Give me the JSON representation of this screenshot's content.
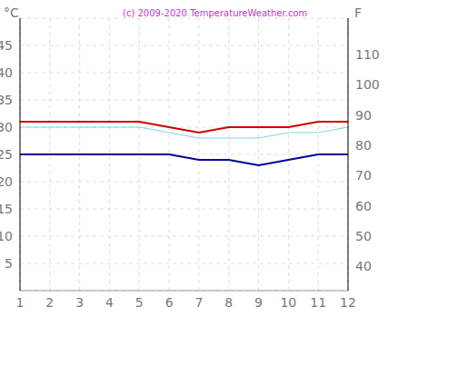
{
  "chart_data": {
    "type": "line",
    "title": "(c) 2009-2020 TemperatureWeather.com",
    "y_label": "°C",
    "y2_label": "F",
    "x": [
      1,
      2,
      3,
      4,
      5,
      6,
      7,
      8,
      9,
      10,
      11,
      12
    ],
    "xlim": [
      1,
      12
    ],
    "xticks": [
      1,
      2,
      3,
      4,
      5,
      6,
      7,
      8,
      9,
      10,
      11,
      12
    ],
    "ylim": [
      0,
      50
    ],
    "yticks": [
      5,
      10,
      15,
      20,
      25,
      30,
      35,
      40,
      45
    ],
    "y2lim": [
      32,
      122
    ],
    "y2ticks": [
      40,
      50,
      60,
      70,
      80,
      90,
      100,
      110
    ],
    "grid": true,
    "series": [
      {
        "color": "#cc0000",
        "values": [
          31,
          31,
          31,
          31,
          31,
          30,
          29,
          30,
          30,
          30,
          31,
          31
        ]
      },
      {
        "color": "#7fd3e0",
        "values": [
          30,
          30,
          30,
          30,
          30,
          29,
          28,
          28,
          28,
          29,
          29,
          30
        ]
      },
      {
        "color": "#000099",
        "values": [
          25,
          25,
          25,
          25,
          25,
          25,
          24,
          24,
          23,
          24,
          25,
          25
        ]
      }
    ]
  }
}
